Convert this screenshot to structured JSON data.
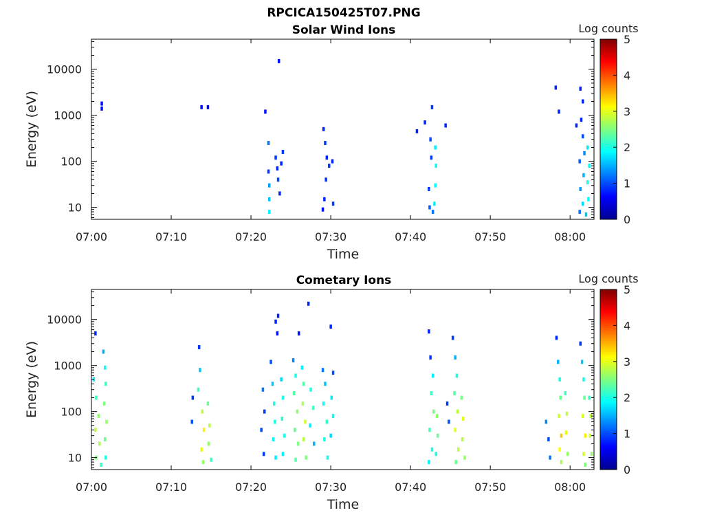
{
  "figure": {
    "title": "RPCICA150425T07.PNG"
  },
  "colors": {
    "colormap": [
      "#00008f",
      "#0000ff",
      "#007fff",
      "#00ffff",
      "#7fff7f",
      "#ffff00",
      "#ff7f00",
      "#ff0000",
      "#7f0000"
    ],
    "axes": "#000000"
  },
  "chart_data": [
    {
      "type": "heatmap",
      "title": "Solar Wind Ions",
      "xlabel": "Time",
      "ylabel": "Energy (eV)",
      "x_ticks": [
        "07:00",
        "07:10",
        "07:20",
        "07:30",
        "07:40",
        "07:50",
        "08:00"
      ],
      "y_ticks": [
        "10",
        "100",
        "1000",
        "10000"
      ],
      "y_scale": "log",
      "ylim": [
        5.5,
        45000
      ],
      "xlim_minutes": [
        0,
        63
      ],
      "colorbar": {
        "label": "Log counts",
        "ticks": [
          "0",
          "1",
          "2",
          "3",
          "4",
          "5"
        ],
        "range": [
          0,
          5
        ]
      },
      "cells": [
        {
          "t": 1.3,
          "e": 1800,
          "v": 0.7
        },
        {
          "t": 1.3,
          "e": 1400,
          "v": 0.7
        },
        {
          "t": 13.8,
          "e": 1500,
          "v": 0.7
        },
        {
          "t": 14.6,
          "e": 1500,
          "v": 0.7
        },
        {
          "t": 21.8,
          "e": 1200,
          "v": 0.7
        },
        {
          "t": 23.5,
          "e": 15000,
          "v": 0.7
        },
        {
          "t": 22.2,
          "e": 250,
          "v": 1.2
        },
        {
          "t": 22.2,
          "e": 60,
          "v": 0.9
        },
        {
          "t": 22.3,
          "e": 30,
          "v": 1.4
        },
        {
          "t": 22.3,
          "e": 15,
          "v": 1.6
        },
        {
          "t": 22.3,
          "e": 8,
          "v": 1.8
        },
        {
          "t": 23.1,
          "e": 120,
          "v": 0.9
        },
        {
          "t": 23.3,
          "e": 70,
          "v": 0.8
        },
        {
          "t": 23.4,
          "e": 40,
          "v": 1.0
        },
        {
          "t": 23.6,
          "e": 20,
          "v": 0.8
        },
        {
          "t": 23.8,
          "e": 90,
          "v": 0.8
        },
        {
          "t": 24.0,
          "e": 160,
          "v": 0.9
        },
        {
          "t": 29.1,
          "e": 500,
          "v": 0.8
        },
        {
          "t": 29.3,
          "e": 250,
          "v": 0.9
        },
        {
          "t": 29.5,
          "e": 120,
          "v": 0.8
        },
        {
          "t": 29.8,
          "e": 80,
          "v": 0.9
        },
        {
          "t": 29.4,
          "e": 40,
          "v": 0.9
        },
        {
          "t": 29.2,
          "e": 15,
          "v": 0.8
        },
        {
          "t": 30.3,
          "e": 12,
          "v": 0.9
        },
        {
          "t": 30.2,
          "e": 100,
          "v": 0.8
        },
        {
          "t": 29.0,
          "e": 9,
          "v": 0.7
        },
        {
          "t": 40.8,
          "e": 450,
          "v": 0.8
        },
        {
          "t": 41.8,
          "e": 700,
          "v": 0.8
        },
        {
          "t": 42.7,
          "e": 1500,
          "v": 0.9
        },
        {
          "t": 42.5,
          "e": 300,
          "v": 1.0
        },
        {
          "t": 42.6,
          "e": 120,
          "v": 0.9
        },
        {
          "t": 42.3,
          "e": 25,
          "v": 0.9
        },
        {
          "t": 42.4,
          "e": 10,
          "v": 1.1
        },
        {
          "t": 42.8,
          "e": 8,
          "v": 1.2
        },
        {
          "t": 43.1,
          "e": 200,
          "v": 1.8
        },
        {
          "t": 43.2,
          "e": 80,
          "v": 1.9
        },
        {
          "t": 43.1,
          "e": 30,
          "v": 1.9
        },
        {
          "t": 43.0,
          "e": 12,
          "v": 1.8
        },
        {
          "t": 44.4,
          "e": 600,
          "v": 0.8
        },
        {
          "t": 58.2,
          "e": 4000,
          "v": 0.8
        },
        {
          "t": 58.6,
          "e": 1200,
          "v": 0.8
        },
        {
          "t": 60.8,
          "e": 600,
          "v": 0.8
        },
        {
          "t": 61.3,
          "e": 3800,
          "v": 0.8
        },
        {
          "t": 61.6,
          "e": 2000,
          "v": 0.8
        },
        {
          "t": 61.4,
          "e": 800,
          "v": 0.8
        },
        {
          "t": 61.6,
          "e": 350,
          "v": 1.0
        },
        {
          "t": 61.8,
          "e": 150,
          "v": 1.3
        },
        {
          "t": 61.2,
          "e": 100,
          "v": 1.1
        },
        {
          "t": 61.7,
          "e": 50,
          "v": 1.5
        },
        {
          "t": 61.3,
          "e": 25,
          "v": 1.4
        },
        {
          "t": 61.6,
          "e": 12,
          "v": 1.7
        },
        {
          "t": 61.2,
          "e": 8,
          "v": 1.2
        },
        {
          "t": 62.2,
          "e": 200,
          "v": 1.8
        },
        {
          "t": 62.4,
          "e": 80,
          "v": 1.9
        },
        {
          "t": 62.2,
          "e": 35,
          "v": 2.0
        },
        {
          "t": 62.3,
          "e": 15,
          "v": 1.9
        },
        {
          "t": 62.0,
          "e": 7,
          "v": 1.6
        }
      ]
    },
    {
      "type": "heatmap",
      "title": "Cometary Ions",
      "xlabel": "Time",
      "ylabel": "Energy (eV)",
      "x_ticks": [
        "07:00",
        "07:10",
        "07:20",
        "07:30",
        "07:40",
        "07:50",
        "08:00"
      ],
      "y_ticks": [
        "10",
        "100",
        "1000",
        "10000"
      ],
      "y_scale": "log",
      "ylim": [
        5.5,
        45000
      ],
      "xlim_minutes": [
        0,
        63
      ],
      "colorbar": {
        "label": "Log counts",
        "ticks": [
          "0",
          "1",
          "2",
          "3",
          "4",
          "5"
        ],
        "range": [
          0,
          5
        ]
      },
      "cells": [
        {
          "t": 0.5,
          "e": 5000,
          "v": 0.8
        },
        {
          "t": 0.3,
          "e": 500,
          "v": 1.8
        },
        {
          "t": 0.6,
          "e": 200,
          "v": 2.2
        },
        {
          "t": 0.9,
          "e": 80,
          "v": 2.6
        },
        {
          "t": 0.5,
          "e": 40,
          "v": 2.8
        },
        {
          "t": 1.0,
          "e": 20,
          "v": 2.7
        },
        {
          "t": 0.6,
          "e": 10,
          "v": 2.5
        },
        {
          "t": 1.2,
          "e": 7,
          "v": 2.2
        },
        {
          "t": 1.5,
          "e": 2000,
          "v": 1.5
        },
        {
          "t": 1.7,
          "e": 900,
          "v": 1.9
        },
        {
          "t": 1.8,
          "e": 400,
          "v": 2.2
        },
        {
          "t": 1.6,
          "e": 150,
          "v": 2.5
        },
        {
          "t": 1.9,
          "e": 60,
          "v": 2.6
        },
        {
          "t": 1.7,
          "e": 25,
          "v": 2.4
        },
        {
          "t": 1.8,
          "e": 10,
          "v": 2.0
        },
        {
          "t": 13.5,
          "e": 2500,
          "v": 0.9
        },
        {
          "t": 13.6,
          "e": 800,
          "v": 1.6
        },
        {
          "t": 13.4,
          "e": 300,
          "v": 2.2
        },
        {
          "t": 13.9,
          "e": 100,
          "v": 2.8
        },
        {
          "t": 14.1,
          "e": 40,
          "v": 3.2
        },
        {
          "t": 13.8,
          "e": 15,
          "v": 3.0
        },
        {
          "t": 14.0,
          "e": 8,
          "v": 2.6
        },
        {
          "t": 12.7,
          "e": 200,
          "v": 0.9
        },
        {
          "t": 12.6,
          "e": 60,
          "v": 1.0
        },
        {
          "t": 14.6,
          "e": 150,
          "v": 2.4
        },
        {
          "t": 14.8,
          "e": 50,
          "v": 2.8
        },
        {
          "t": 14.7,
          "e": 20,
          "v": 2.6
        },
        {
          "t": 15.0,
          "e": 9,
          "v": 2.2
        },
        {
          "t": 21.5,
          "e": 300,
          "v": 1.2
        },
        {
          "t": 21.7,
          "e": 100,
          "v": 0.9
        },
        {
          "t": 21.3,
          "e": 40,
          "v": 1.0
        },
        {
          "t": 21.6,
          "e": 12,
          "v": 0.9
        },
        {
          "t": 22.5,
          "e": 1200,
          "v": 1.0
        },
        {
          "t": 22.7,
          "e": 400,
          "v": 1.6
        },
        {
          "t": 22.9,
          "e": 150,
          "v": 2.0
        },
        {
          "t": 23.0,
          "e": 60,
          "v": 2.0
        },
        {
          "t": 22.8,
          "e": 25,
          "v": 1.9
        },
        {
          "t": 23.1,
          "e": 10,
          "v": 1.8
        },
        {
          "t": 23.4,
          "e": 12000,
          "v": 0.8
        },
        {
          "t": 23.1,
          "e": 9000,
          "v": 0.8
        },
        {
          "t": 23.3,
          "e": 5000,
          "v": 0.7
        },
        {
          "t": 23.8,
          "e": 500,
          "v": 1.7
        },
        {
          "t": 24.0,
          "e": 200,
          "v": 2.0
        },
        {
          "t": 23.9,
          "e": 70,
          "v": 2.1
        },
        {
          "t": 24.2,
          "e": 30,
          "v": 2.0
        },
        {
          "t": 24.0,
          "e": 12,
          "v": 1.8
        },
        {
          "t": 25.3,
          "e": 1300,
          "v": 1.3
        },
        {
          "t": 25.6,
          "e": 600,
          "v": 2.0
        },
        {
          "t": 25.4,
          "e": 250,
          "v": 2.3
        },
        {
          "t": 25.8,
          "e": 100,
          "v": 2.6
        },
        {
          "t": 25.5,
          "e": 40,
          "v": 2.4
        },
        {
          "t": 25.9,
          "e": 20,
          "v": 2.5
        },
        {
          "t": 25.6,
          "e": 9,
          "v": 2.3
        },
        {
          "t": 26.4,
          "e": 900,
          "v": 1.8
        },
        {
          "t": 26.6,
          "e": 400,
          "v": 2.3
        },
        {
          "t": 26.5,
          "e": 150,
          "v": 2.7
        },
        {
          "t": 26.8,
          "e": 60,
          "v": 2.9
        },
        {
          "t": 26.6,
          "e": 25,
          "v": 2.8
        },
        {
          "t": 26.9,
          "e": 10,
          "v": 2.5
        },
        {
          "t": 27.2,
          "e": 22000,
          "v": 0.8
        },
        {
          "t": 26.0,
          "e": 5000,
          "v": 0.7
        },
        {
          "t": 27.5,
          "e": 300,
          "v": 2.0
        },
        {
          "t": 27.8,
          "e": 120,
          "v": 2.2
        },
        {
          "t": 27.4,
          "e": 50,
          "v": 1.8
        },
        {
          "t": 27.9,
          "e": 20,
          "v": 1.5
        },
        {
          "t": 29.0,
          "e": 800,
          "v": 1.2
        },
        {
          "t": 29.3,
          "e": 400,
          "v": 1.6
        },
        {
          "t": 29.1,
          "e": 150,
          "v": 1.9
        },
        {
          "t": 29.5,
          "e": 60,
          "v": 2.1
        },
        {
          "t": 29.2,
          "e": 25,
          "v": 2.0
        },
        {
          "t": 29.6,
          "e": 10,
          "v": 1.9
        },
        {
          "t": 30.0,
          "e": 7000,
          "v": 0.8
        },
        {
          "t": 30.3,
          "e": 700,
          "v": 1.0
        },
        {
          "t": 30.1,
          "e": 200,
          "v": 1.8
        },
        {
          "t": 30.3,
          "e": 80,
          "v": 1.9
        },
        {
          "t": 30.0,
          "e": 30,
          "v": 1.7
        },
        {
          "t": 42.3,
          "e": 5500,
          "v": 0.8
        },
        {
          "t": 42.5,
          "e": 1500,
          "v": 0.9
        },
        {
          "t": 42.8,
          "e": 600,
          "v": 1.8
        },
        {
          "t": 42.6,
          "e": 250,
          "v": 2.2
        },
        {
          "t": 42.9,
          "e": 100,
          "v": 2.5
        },
        {
          "t": 42.4,
          "e": 40,
          "v": 2.2
        },
        {
          "t": 42.7,
          "e": 15,
          "v": 2.0
        },
        {
          "t": 42.3,
          "e": 8,
          "v": 1.8
        },
        {
          "t": 43.3,
          "e": 80,
          "v": 2.6
        },
        {
          "t": 43.4,
          "e": 30,
          "v": 2.4
        },
        {
          "t": 43.2,
          "e": 12,
          "v": 2.0
        },
        {
          "t": 45.3,
          "e": 4000,
          "v": 0.9
        },
        {
          "t": 45.6,
          "e": 1500,
          "v": 1.5
        },
        {
          "t": 45.8,
          "e": 600,
          "v": 2.0
        },
        {
          "t": 45.5,
          "e": 250,
          "v": 2.3
        },
        {
          "t": 45.9,
          "e": 100,
          "v": 2.8
        },
        {
          "t": 45.6,
          "e": 40,
          "v": 3.0
        },
        {
          "t": 46.0,
          "e": 15,
          "v": 2.8
        },
        {
          "t": 45.7,
          "e": 8,
          "v": 2.4
        },
        {
          "t": 44.6,
          "e": 150,
          "v": 0.9
        },
        {
          "t": 44.8,
          "e": 60,
          "v": 1.0
        },
        {
          "t": 46.4,
          "e": 200,
          "v": 2.5
        },
        {
          "t": 46.6,
          "e": 70,
          "v": 3.0
        },
        {
          "t": 46.5,
          "e": 25,
          "v": 2.8
        },
        {
          "t": 46.8,
          "e": 10,
          "v": 2.6
        },
        {
          "t": 57.0,
          "e": 60,
          "v": 1.3
        },
        {
          "t": 57.3,
          "e": 25,
          "v": 1.0
        },
        {
          "t": 57.5,
          "e": 10,
          "v": 1.2
        },
        {
          "t": 58.3,
          "e": 4000,
          "v": 0.8
        },
        {
          "t": 58.5,
          "e": 1200,
          "v": 1.5
        },
        {
          "t": 58.7,
          "e": 500,
          "v": 2.0
        },
        {
          "t": 58.8,
          "e": 200,
          "v": 2.4
        },
        {
          "t": 58.6,
          "e": 80,
          "v": 2.9
        },
        {
          "t": 58.9,
          "e": 30,
          "v": 3.4
        },
        {
          "t": 58.7,
          "e": 15,
          "v": 3.1
        },
        {
          "t": 58.9,
          "e": 8,
          "v": 2.7
        },
        {
          "t": 59.4,
          "e": 250,
          "v": 2.2
        },
        {
          "t": 59.6,
          "e": 90,
          "v": 2.8
        },
        {
          "t": 59.5,
          "e": 35,
          "v": 3.0
        },
        {
          "t": 59.7,
          "e": 12,
          "v": 2.6
        },
        {
          "t": 61.3,
          "e": 3000,
          "v": 0.9
        },
        {
          "t": 61.5,
          "e": 1200,
          "v": 1.6
        },
        {
          "t": 61.7,
          "e": 500,
          "v": 2.0
        },
        {
          "t": 61.8,
          "e": 200,
          "v": 2.4
        },
        {
          "t": 61.6,
          "e": 80,
          "v": 2.9
        },
        {
          "t": 61.9,
          "e": 30,
          "v": 3.2
        },
        {
          "t": 61.7,
          "e": 12,
          "v": 2.9
        },
        {
          "t": 61.9,
          "e": 7,
          "v": 2.5
        },
        {
          "t": 62.4,
          "e": 200,
          "v": 2.2
        },
        {
          "t": 62.6,
          "e": 80,
          "v": 2.8
        },
        {
          "t": 62.5,
          "e": 30,
          "v": 2.9
        },
        {
          "t": 62.7,
          "e": 12,
          "v": 2.6
        }
      ]
    }
  ]
}
